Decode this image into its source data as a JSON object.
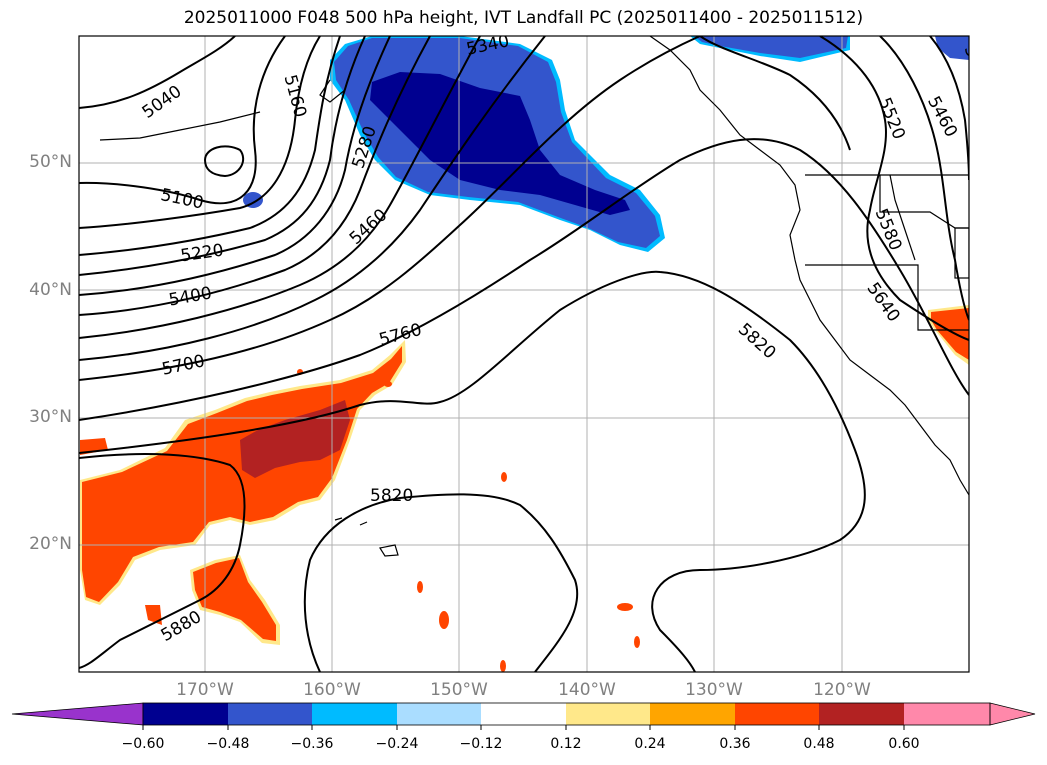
{
  "title": "2025011000 F048 500 hPa height, IVT Landfall PC (2025011400 - 2025011512)",
  "lat_labels": [
    "50°N",
    "40°N",
    "30°N",
    "20°N"
  ],
  "lon_labels": [
    "170°W",
    "160°W",
    "150°W",
    "140°W",
    "130°W",
    "120°W"
  ],
  "contour_labels": [
    "5040",
    "5100",
    "5160",
    "5220",
    "5280",
    "5340",
    "5400",
    "5460",
    "5520",
    "5580",
    "5640",
    "5700",
    "5760",
    "5820",
    "5880"
  ],
  "colorbar": {
    "ticks": [
      "−0.60",
      "−0.48",
      "−0.36",
      "−0.24",
      "−0.12",
      "0.12",
      "0.24",
      "0.36",
      "0.48",
      "0.60"
    ],
    "colors": [
      "#9933cc",
      "#000090",
      "#3355cc",
      "#00bbff",
      "#aaddff",
      "#ffffff",
      "#ffe88a",
      "#ffa500",
      "#ff4500",
      "#b22222",
      "#ff88aa"
    ]
  },
  "colors": {
    "neg_strong": "#000090",
    "neg_mid": "#3355cc",
    "neg_light": "#00bbff",
    "pos_orange": "#ff4500",
    "pos_red": "#b22222",
    "pos_yellow": "#ffe88a"
  }
}
